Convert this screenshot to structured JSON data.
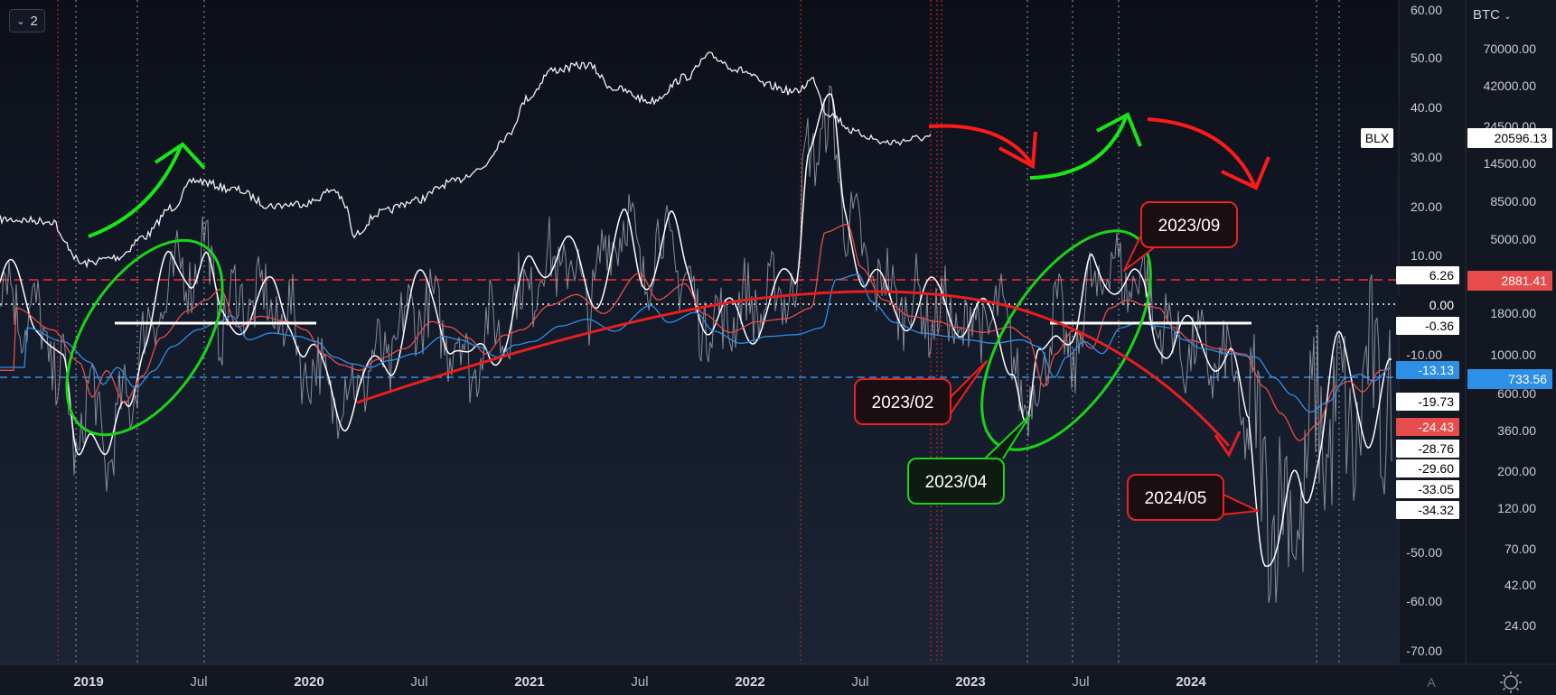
{
  "toolbar": {
    "pane_count": "2",
    "symbol": "BTC"
  },
  "chart_data": {
    "type": "line",
    "x_ticks": [
      "2019",
      "Jul",
      "2020",
      "Jul",
      "2021",
      "Jul",
      "2022",
      "Jul",
      "2023",
      "Jul",
      "2024"
    ],
    "x_ticks_bold": [
      "2019",
      "2020",
      "2021",
      "2022",
      "2023",
      "2024"
    ],
    "oscillator_axis": {
      "ticks": [
        60,
        50,
        40,
        30,
        20,
        10,
        -10,
        -50,
        -60,
        -70
      ],
      "labels": [
        "60.00",
        "50.00",
        "40.00",
        "30.00",
        "20.00",
        "10.00",
        "-10.00",
        "-50.00",
        "-60.00",
        "-70.00"
      ]
    },
    "price_axis": {
      "ticks": [
        70000,
        42000,
        24500,
        14500,
        8500,
        5000,
        1800,
        1000,
        600,
        360,
        200,
        120,
        70,
        42,
        24
      ],
      "labels": [
        "70000.00",
        "42000.00",
        "24500.00",
        "14500.00",
        "8500.00",
        "5000.00",
        "1800.00",
        "1000.00",
        "600.00",
        "360.00",
        "200.00",
        "120.00",
        "70.00",
        "42.00",
        "24.00"
      ],
      "scale": "log"
    },
    "value_tags": {
      "left": [
        {
          "label": "6.26",
          "kind": "white"
        },
        {
          "label": "0.00",
          "kind": "white"
        },
        {
          "label": "-0.36",
          "kind": "white"
        },
        {
          "label": "-13.13",
          "kind": "blue"
        },
        {
          "label": "-19.73",
          "kind": "white"
        },
        {
          "label": "-24.43",
          "kind": "red"
        },
        {
          "label": "-28.76",
          "kind": "white"
        },
        {
          "label": "-29.60",
          "kind": "white"
        },
        {
          "label": "-33.05",
          "kind": "white"
        },
        {
          "label": "-34.32",
          "kind": "white"
        }
      ],
      "right": [
        {
          "label": "20596.13",
          "kind": "white"
        },
        {
          "label": "2881.41",
          "kind": "red"
        },
        {
          "label": "733.56",
          "kind": "blue"
        }
      ],
      "series_label": "BLX"
    },
    "annotations": [
      "2023/09",
      "2023/02",
      "2023/04",
      "2024/05"
    ],
    "colors": {
      "oscillator": "#d8dbe2",
      "smooth": "#ffffff",
      "red_ma": "#e84b4b",
      "blue_ma": "#2e8fe6",
      "arrow_green": "#19e619",
      "arrow_red": "#ff1a1a",
      "annotation_red": "#e8231f",
      "annotation_green": "#19d419",
      "axis_text": "#c9ccd4"
    }
  },
  "footer": {
    "scale_a": "A"
  }
}
